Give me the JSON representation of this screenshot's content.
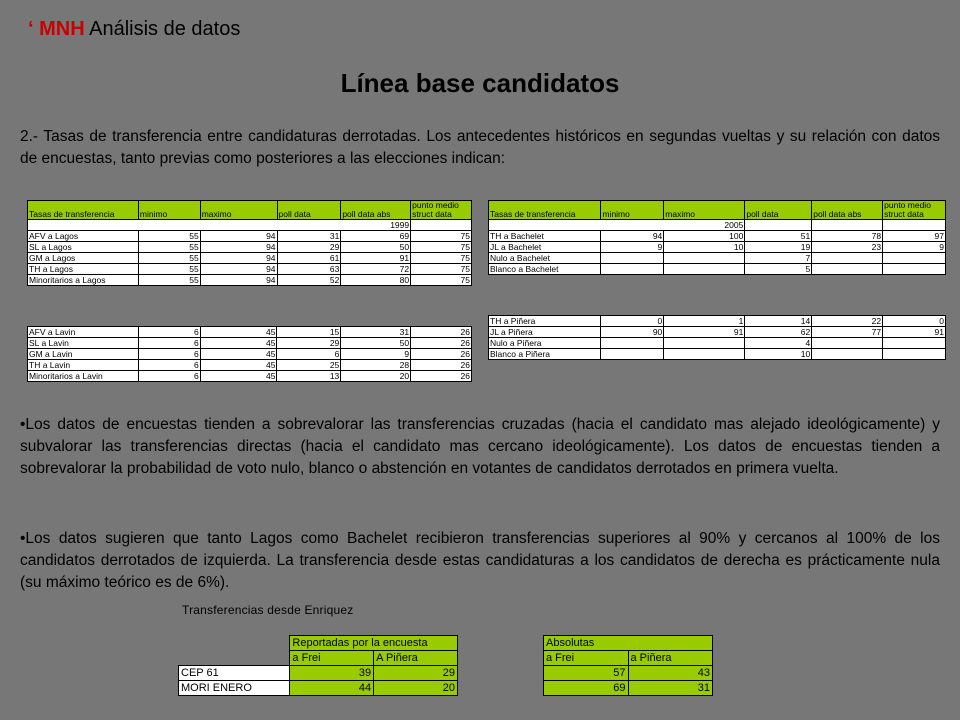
{
  "header": {
    "mark": "‘",
    "brand": "MNH",
    "subtitle": "Análisis de datos"
  },
  "title": "Línea base candidatos",
  "intro": "2.- Tasas de transferencia entre candidaturas derrotadas. Los antecedentes históricos en segundas vueltas y su relación con datos de encuestas, tanto previas como posteriores a las elecciones indican:",
  "left_table": {
    "headers": [
      "Tasas de transferencia",
      "minimo",
      "maximo",
      "poll data",
      "poll data abs",
      "punto medio struct data"
    ],
    "year": "1999",
    "group1": [
      [
        "AFV a Lagos",
        "55",
        "94",
        "31",
        "69",
        "75"
      ],
      [
        "SL a Lagos",
        "55",
        "94",
        "29",
        "50",
        "75"
      ],
      [
        "GM a Lagos",
        "55",
        "94",
        "61",
        "91",
        "75"
      ],
      [
        "TH a Lagos",
        "55",
        "94",
        "63",
        "72",
        "75"
      ],
      [
        "Minoritarios a Lagos",
        "55",
        "94",
        "52",
        "80",
        "75"
      ]
    ],
    "group2": [
      [
        "AFV a Lavin",
        "6",
        "45",
        "15",
        "31",
        "26"
      ],
      [
        "SL a Lavin",
        "6",
        "45",
        "29",
        "50",
        "26"
      ],
      [
        "GM a Lavin",
        "6",
        "45",
        "6",
        "9",
        "26"
      ],
      [
        "TH a Lavin",
        "6",
        "45",
        "25",
        "28",
        "26"
      ],
      [
        "Minoritarios a Lavin",
        "6",
        "45",
        "13",
        "20",
        "26"
      ]
    ]
  },
  "right_table": {
    "headers": [
      "Tasas de transferencia",
      "minimo",
      "maximo",
      "poll data",
      "poll data abs",
      "punto medio struct data"
    ],
    "year": "2005",
    "group1": [
      [
        "TH a Bachelet",
        "94",
        "100",
        "51",
        "78",
        "97"
      ],
      [
        "JL a Bachelet",
        "9",
        "10",
        "19",
        "23",
        "9"
      ],
      [
        "Nulo a Bachelet",
        "",
        "",
        "7",
        "",
        ""
      ],
      [
        "Blanco a Bachelet",
        "",
        "",
        "5",
        "",
        ""
      ]
    ],
    "group2": [
      [
        "TH a Piñera",
        "0",
        "1",
        "14",
        "22",
        "0"
      ],
      [
        "JL a Piñera",
        "90",
        "91",
        "62",
        "77",
        "91"
      ],
      [
        "Nulo a Piñera",
        "",
        "",
        "4",
        "",
        ""
      ],
      [
        "Blanco a Piñera",
        "",
        "",
        "10",
        "",
        ""
      ]
    ]
  },
  "bullets": [
    "•Los datos de encuestas tienden a sobrevalorar las transferencias cruzadas (hacia el candidato mas alejado ideológicamente) y subvalorar las transferencias directas (hacia el candidato mas cercano ideológicamente). Los datos de encuestas tienden a sobrevalorar la probabilidad de voto nulo, blanco o abstención en votantes de candidatos derrotados en primera vuelta.",
    "•Los datos sugieren que tanto Lagos como Bachelet recibieron transferencias superiores al 90% y cercanos al 100% de los candidatos derrotados de izquierda. La transferencia desde estas candidaturas a los candidatos de derecha es prácticamente nula (su máximo teórico es de 6%)."
  ],
  "enriquez": {
    "title": "Transferencias desde Enriquez",
    "reported_header": "Reportadas por la encuesta",
    "absolute_header": "Absolutas",
    "col_frei": "a Frei",
    "col_pinera": "A Piñera",
    "col_pinera_abs": "a Piñera",
    "rows": [
      {
        "label": "CEP 61",
        "frei": "39",
        "pinera": "29",
        "abs_frei": "57",
        "abs_pinera": "43"
      },
      {
        "label": "MORI ENERO",
        "frei": "44",
        "pinera": "20",
        "abs_frei": "69",
        "abs_pinera": "31"
      }
    ]
  }
}
